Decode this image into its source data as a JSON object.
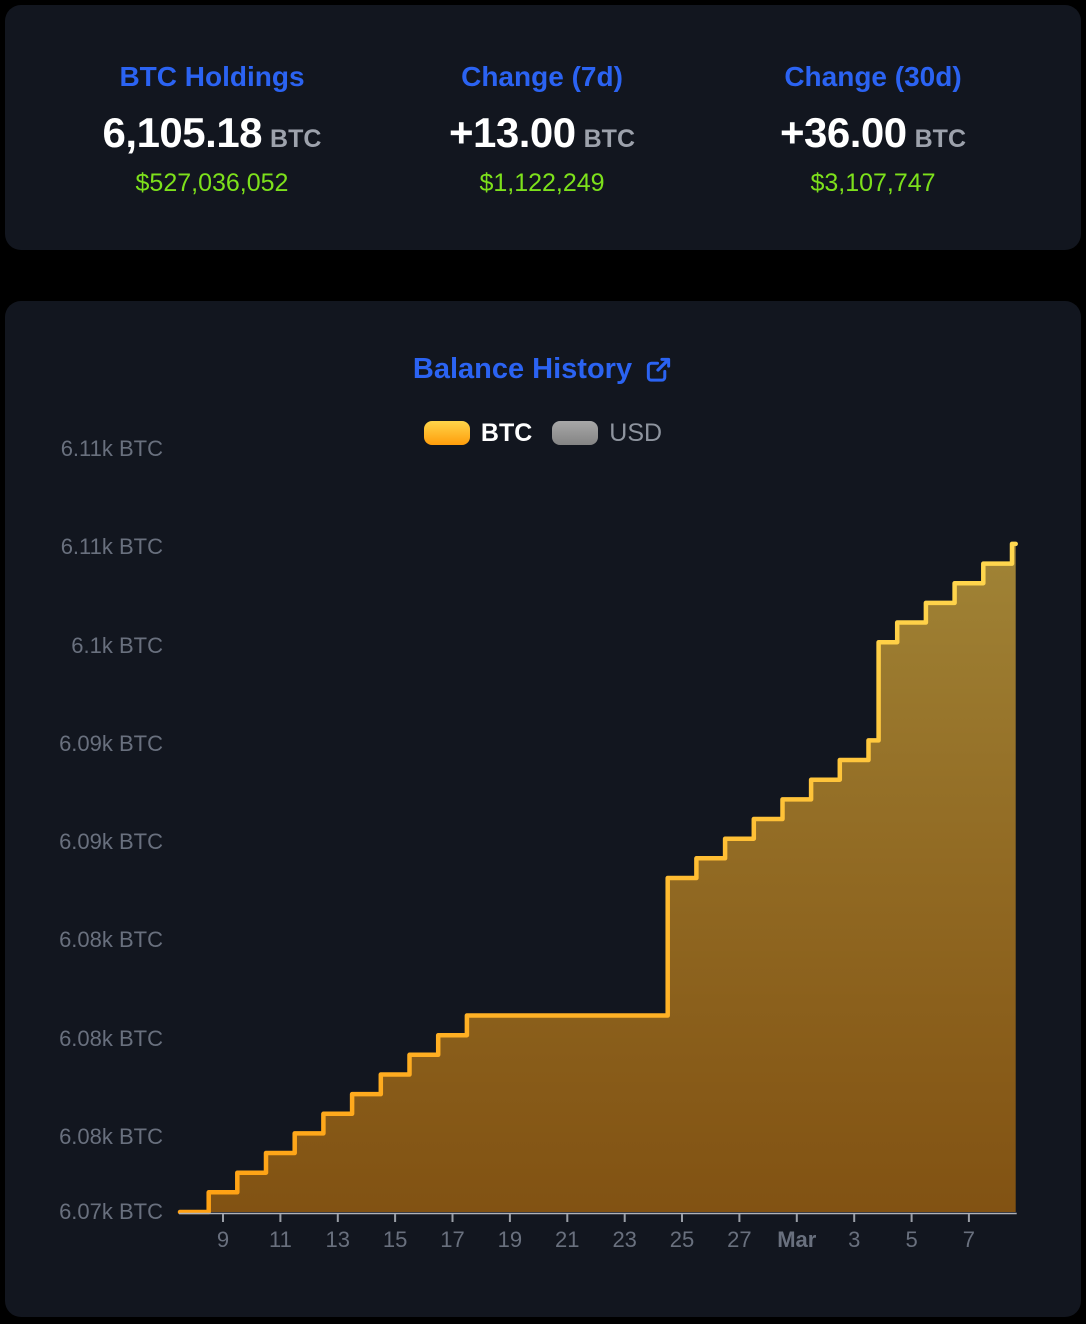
{
  "page": {
    "colors": {
      "page_bg": "#000000",
      "card_bg": "#12161F",
      "accent_blue": "#2B63F2",
      "positive_green": "#7DE11B",
      "unit_gray": "#9DA2AC",
      "axis_label_gray": "#69707E",
      "axis_line_gray": "#AFB2B9",
      "legend_usd_gray": "#8E949E"
    }
  },
  "stats": {
    "cards": [
      {
        "label": "BTC Holdings",
        "value": "6,105.18",
        "unit": "BTC",
        "usd": "$527,036,052"
      },
      {
        "label": "Change (7d)",
        "value": "+13.00",
        "unit": "BTC",
        "usd": "$1,122,249"
      },
      {
        "label": "Change (30d)",
        "value": "+36.00",
        "unit": "BTC",
        "usd": "$3,107,747"
      }
    ]
  },
  "chart": {
    "title": "Balance History",
    "legend": [
      {
        "label": "BTC",
        "active": true,
        "swatch_top": "#FFD54A",
        "swatch_bottom": "#FF9D0B"
      },
      {
        "label": "USD",
        "active": false,
        "swatch_top": "#A8A8A8",
        "swatch_bottom": "#848484"
      }
    ]
  },
  "chart_data": {
    "type": "area",
    "mode": "stepline",
    "title": "Balance History",
    "unit": "BTC",
    "grid": false,
    "legend_position": "top",
    "visible_series": "BTC",
    "inactive_series": "USD",
    "y_axis": {
      "ticks": [
        {
          "label": "6.11k BTC",
          "value": 6110
        },
        {
          "label": "6.11k BTC",
          "value": 6105
        },
        {
          "label": "6.1k BTC",
          "value": 6100
        },
        {
          "label": "6.09k BTC",
          "value": 6095
        },
        {
          "label": "6.09k BTC",
          "value": 6090
        },
        {
          "label": "6.08k BTC",
          "value": 6085
        },
        {
          "label": "6.08k BTC",
          "value": 6080
        },
        {
          "label": "6.08k BTC",
          "value": 6075
        },
        {
          "label": "6.07k BTC",
          "value": 6071.18
        }
      ]
    },
    "x_axis": {
      "ticks": [
        {
          "label": "9",
          "t": 1.5
        },
        {
          "label": "11",
          "t": 3.5
        },
        {
          "label": "13",
          "t": 5.5
        },
        {
          "label": "15",
          "t": 7.5
        },
        {
          "label": "17",
          "t": 9.5
        },
        {
          "label": "19",
          "t": 11.5
        },
        {
          "label": "21",
          "t": 13.5
        },
        {
          "label": "23",
          "t": 15.5
        },
        {
          "label": "25",
          "t": 17.5
        },
        {
          "label": "27",
          "t": 19.5
        },
        {
          "label": "Mar",
          "t": 21.5,
          "bold": true
        },
        {
          "label": "3",
          "t": 23.5
        },
        {
          "label": "5",
          "t": 25.5
        },
        {
          "label": "7",
          "t": 27.5
        }
      ]
    },
    "series": [
      {
        "name": "BTC",
        "start": 6071.18,
        "end": 6105.18,
        "t_end": 29.13,
        "transitions": [
          [
            0,
            6071.18
          ],
          [
            1.0,
            6072.18
          ],
          [
            2.0,
            6073.18
          ],
          [
            3.0,
            6074.18
          ],
          [
            4.0,
            6075.18
          ],
          [
            5.0,
            6076.18
          ],
          [
            6.0,
            6077.18
          ],
          [
            7.0,
            6078.18
          ],
          [
            8.0,
            6079.18
          ],
          [
            9.0,
            6080.18
          ],
          [
            10.0,
            6081.18
          ],
          [
            17.0,
            6088.18
          ],
          [
            18.0,
            6089.18
          ],
          [
            19.0,
            6090.18
          ],
          [
            20.0,
            6091.18
          ],
          [
            21.0,
            6092.18
          ],
          [
            22.0,
            6093.18
          ],
          [
            23.0,
            6094.18
          ],
          [
            24.0,
            6095.18
          ],
          [
            24.35,
            6100.18
          ],
          [
            25.0,
            6101.18
          ],
          [
            26.0,
            6102.18
          ],
          [
            27.0,
            6103.18
          ],
          [
            28.0,
            6104.18
          ],
          [
            29.0,
            6105.18
          ]
        ]
      }
    ],
    "colors": {
      "line_top": "#FFD850",
      "line_bottom": "#FFA113",
      "fill_top": "rgba(255,205,70,0.60)",
      "fill_bottom": "rgba(255,150,5,0.47)",
      "axis_line": "#AFB2B9",
      "tick_mark": "#9A9EA6"
    }
  }
}
